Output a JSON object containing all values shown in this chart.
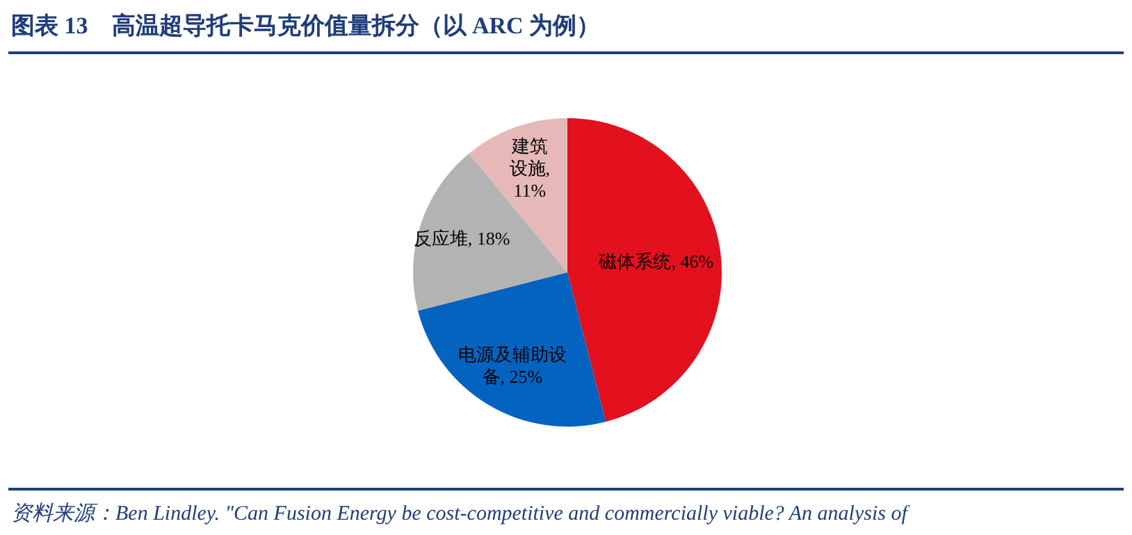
{
  "chart_data": {
    "type": "pie",
    "title": "图表 13　高温超导托卡马克价值量拆分（以 ARC 为例）",
    "categories": [
      "磁体系统",
      "电源及辅助设备",
      "反应堆",
      "建筑设施"
    ],
    "values": [
      46,
      25,
      18,
      11
    ],
    "colors": [
      "#e3101e",
      "#0563c0",
      "#b3b3b3",
      "#e6b9b8"
    ],
    "value_labels": [
      ", 46%",
      ", 25%",
      ", 18%",
      ", 11%"
    ],
    "annotations": [
      "资料来源：Ben Lindley. \"Can Fusion Energy be cost-competitive and commercially viable? An analysis of"
    ]
  }
}
